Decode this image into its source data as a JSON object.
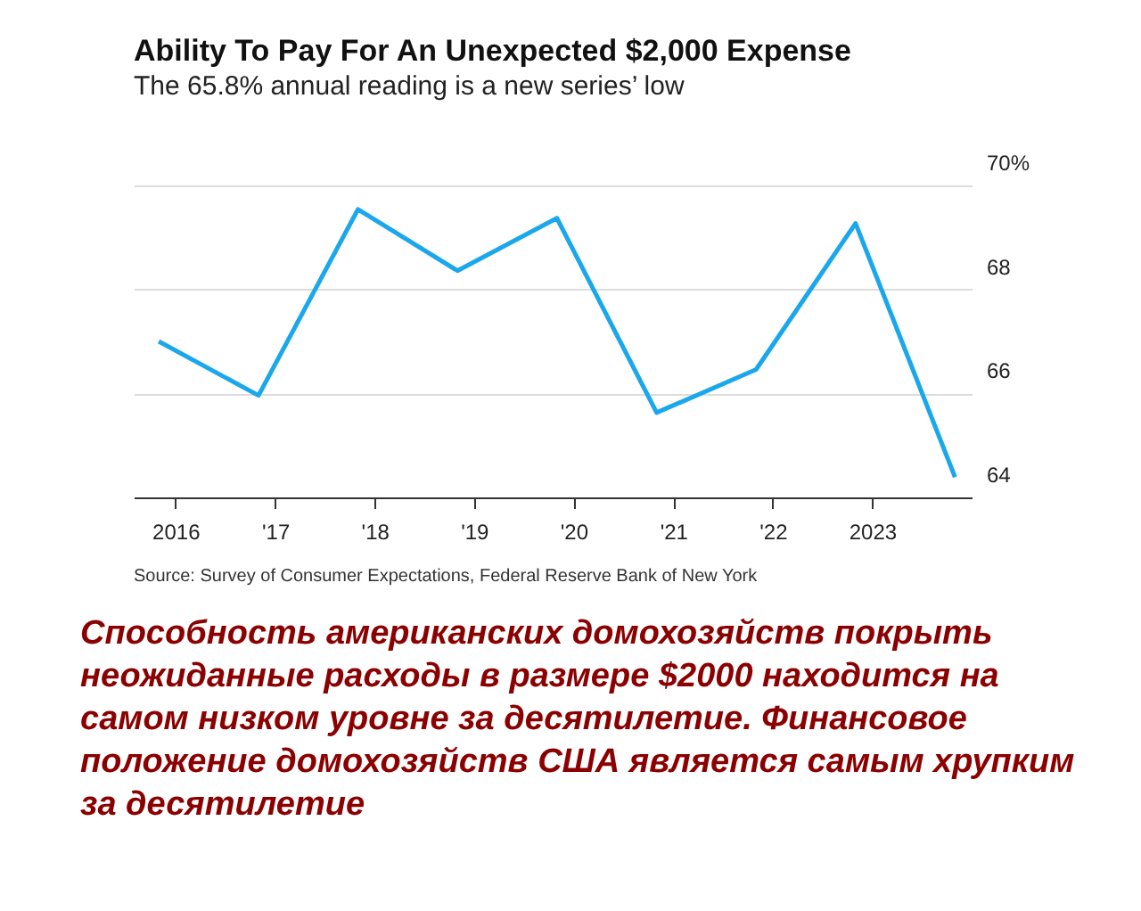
{
  "chart_data": {
    "type": "line",
    "title": "Ability To Pay For An Unexpected $2,000 Expense",
    "subtitle": "The 65.8% annual reading is a new series’ low",
    "x": [
      "2015-11",
      "2016-11",
      "2017-11",
      "2018-11",
      "2019-11",
      "2020-11",
      "2021-11",
      "2022-11",
      "2023-11"
    ],
    "series": [
      {
        "color": "#1aa7ec",
        "values": [
          67.0,
          65.96,
          69.54,
          68.36,
          69.37,
          65.63,
          66.46,
          69.27,
          64.39
        ]
      }
    ],
    "xlim": [
      "2015-08",
      "2024-01"
    ],
    "xticks": [
      {
        "value": "2016",
        "label": "2016"
      },
      {
        "value": "2017",
        "label": "'17"
      },
      {
        "value": "2018",
        "label": "'18"
      },
      {
        "value": "2019",
        "label": "'19"
      },
      {
        "value": "2020",
        "label": "'20"
      },
      {
        "value": "2021",
        "label": "'21"
      },
      {
        "value": "2022",
        "label": "'22"
      },
      {
        "value": "2023",
        "label": "2023"
      }
    ],
    "ylim": [
      64,
      70
    ],
    "yticks": [
      {
        "value": 70,
        "label": "70%"
      },
      68,
      66,
      64
    ],
    "grid": "y",
    "legend": false,
    "marker": "none",
    "line_style": "solid",
    "annotations": [
      "Source: Survey of Consumer Expectations, Federal Reserve Bank of New York",
      "Способность американских домохозяйств покрыть неожиданные расходы в размере $2000 находится на самом низком уровне за десятилетие.  Финансовое положение домохозяйств США  является самым хрупким за десятилетие"
    ]
  }
}
